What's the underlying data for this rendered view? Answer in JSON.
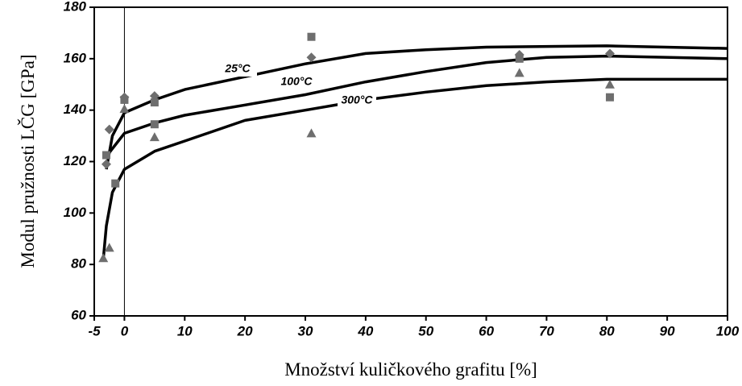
{
  "chart_data": {
    "type": "scatter",
    "xlabel": "Množství kuličkového grafitu [%]",
    "ylabel": "Modul pružnosti LČG [GPa]",
    "xlim": [
      -5,
      100
    ],
    "xticks": [
      -5,
      0,
      10,
      20,
      30,
      40,
      50,
      60,
      70,
      80,
      90,
      100
    ],
    "ylim": [
      60,
      180
    ],
    "yticks": [
      60,
      80,
      100,
      120,
      140,
      160,
      180
    ],
    "series": [
      {
        "marker": "diamond",
        "color": "#6e6e6e",
        "x": [
          -3,
          -2.5,
          0,
          5,
          31,
          65.5,
          80.5
        ],
        "values": [
          119,
          132.5,
          145,
          145.5,
          160.5,
          161.5,
          162
        ]
      },
      {
        "marker": "square",
        "color": "#6e6e6e",
        "x": [
          -3,
          -1.5,
          0,
          5,
          5,
          31,
          65.5,
          80.5
        ],
        "values": [
          122.5,
          111.5,
          144,
          143,
          134.5,
          168.5,
          160,
          145
        ]
      },
      {
        "marker": "triangle",
        "color": "#6e6e6e",
        "x": [
          -3.5,
          -2.5,
          0,
          5,
          31,
          65.5,
          80.5
        ],
        "values": [
          82.5,
          86.5,
          140.5,
          129.5,
          131,
          154.5,
          150
        ]
      }
    ],
    "curves": [
      {
        "name": "25°C",
        "color": "#000000",
        "x": [
          -3,
          -2,
          0,
          5,
          10,
          20,
          30,
          40,
          50,
          60,
          80,
          100
        ],
        "values": [
          117,
          130,
          139,
          144,
          148,
          153,
          158,
          162,
          163.5,
          164.5,
          165,
          164
        ]
      },
      {
        "name": "100°C",
        "color": "#000000",
        "x": [
          -3,
          -1,
          0,
          5,
          10,
          20,
          30,
          40,
          50,
          60,
          70,
          80,
          100
        ],
        "values": [
          122,
          128,
          131,
          135,
          138,
          142,
          146,
          151,
          155,
          158.5,
          160.5,
          161,
          160
        ]
      },
      {
        "name": "300°C",
        "color": "#000000",
        "x": [
          -3.5,
          -3,
          -2,
          0,
          5,
          10,
          20,
          30,
          40,
          50,
          60,
          70,
          80,
          100
        ],
        "values": [
          82,
          95,
          108,
          117,
          124,
          128,
          136,
          140,
          144,
          147,
          149.5,
          151,
          152,
          152
        ]
      }
    ],
    "zero_line": true
  }
}
